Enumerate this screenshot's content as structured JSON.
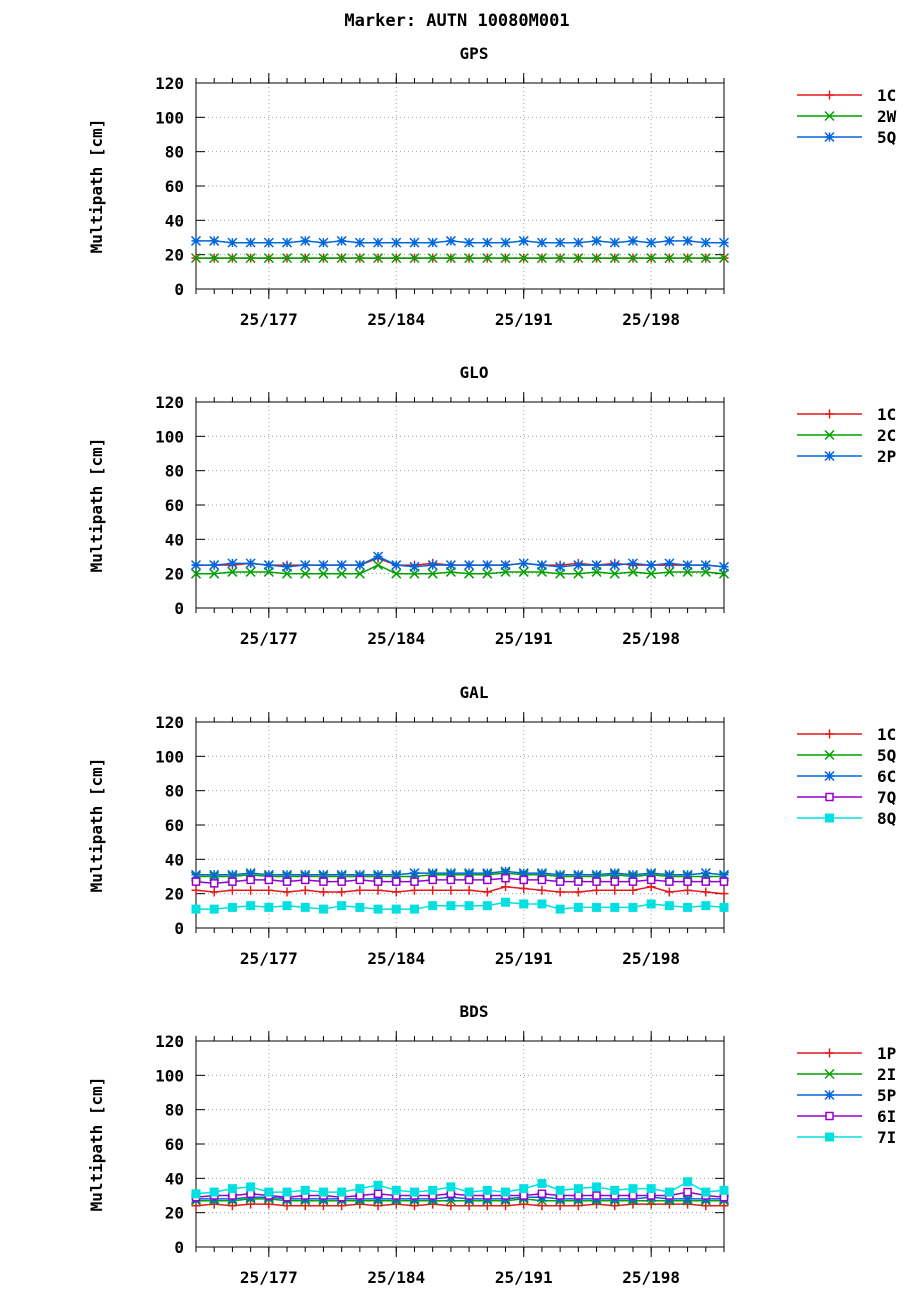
{
  "main_title": "Marker: AUTN 10080M001",
  "chart_data": [
    {
      "type": "line",
      "title": "GPS",
      "ylabel": "Multipath [cm]",
      "xlabel": "",
      "ylim": [
        0,
        120
      ],
      "yticks": [
        0,
        20,
        40,
        60,
        80,
        100,
        120
      ],
      "xlim": [
        2025.173,
        2025.202
      ],
      "xticks": [
        "25/177",
        "25/184",
        "25/191",
        "25/198"
      ],
      "xtick_values": [
        2025.177,
        2025.184,
        2025.191,
        2025.198
      ],
      "grid": true,
      "legend_position": "right",
      "x": [
        2025.173,
        2025.174,
        2025.175,
        2025.176,
        2025.177,
        2025.178,
        2025.179,
        2025.18,
        2025.181,
        2025.182,
        2025.183,
        2025.184,
        2025.185,
        2025.186,
        2025.187,
        2025.188,
        2025.189,
        2025.19,
        2025.191,
        2025.192,
        2025.193,
        2025.194,
        2025.195,
        2025.196,
        2025.197,
        2025.198,
        2025.199,
        2025.2,
        2025.201,
        2025.202
      ],
      "series": [
        {
          "name": "1C",
          "color": "#e41a1c",
          "marker": "plus",
          "values": [
            18,
            18,
            18,
            18,
            18,
            18,
            18,
            18,
            18,
            18,
            18,
            18,
            18,
            18,
            18,
            18,
            18,
            18,
            18,
            18,
            18,
            18,
            18,
            18,
            18,
            18,
            18,
            18,
            18,
            18
          ]
        },
        {
          "name": "2W",
          "color": "#00a000",
          "marker": "cross",
          "values": [
            18,
            18,
            18,
            18,
            18,
            18,
            18,
            18,
            18,
            18,
            18,
            18,
            18,
            18,
            18,
            18,
            18,
            18,
            18,
            18,
            18,
            18,
            18,
            18,
            18,
            18,
            18,
            18,
            18,
            18
          ]
        },
        {
          "name": "5Q",
          "color": "#0066dd",
          "marker": "star",
          "values": [
            28,
            28,
            27,
            27,
            27,
            27,
            28,
            27,
            28,
            27,
            27,
            27,
            27,
            27,
            28,
            27,
            27,
            27,
            28,
            27,
            27,
            27,
            28,
            27,
            28,
            27,
            28,
            28,
            27,
            27
          ]
        }
      ]
    },
    {
      "type": "line",
      "title": "GLO",
      "ylabel": "Multipath [cm]",
      "xlabel": "",
      "ylim": [
        0,
        120
      ],
      "yticks": [
        0,
        20,
        40,
        60,
        80,
        100,
        120
      ],
      "xlim": [
        2025.173,
        2025.202
      ],
      "xticks": [
        "25/177",
        "25/184",
        "25/191",
        "25/198"
      ],
      "xtick_values": [
        2025.177,
        2025.184,
        2025.191,
        2025.198
      ],
      "grid": true,
      "legend_position": "right",
      "x": [
        2025.173,
        2025.174,
        2025.175,
        2025.176,
        2025.177,
        2025.178,
        2025.179,
        2025.18,
        2025.181,
        2025.182,
        2025.183,
        2025.184,
        2025.185,
        2025.186,
        2025.187,
        2025.188,
        2025.189,
        2025.19,
        2025.191,
        2025.192,
        2025.193,
        2025.194,
        2025.195,
        2025.196,
        2025.197,
        2025.198,
        2025.199,
        2025.2,
        2025.201,
        2025.202
      ],
      "series": [
        {
          "name": "1C",
          "color": "#e41a1c",
          "marker": "plus",
          "values": [
            25,
            25,
            25,
            26,
            25,
            25,
            25,
            25,
            25,
            25,
            29,
            25,
            25,
            26,
            25,
            25,
            25,
            25,
            26,
            25,
            25,
            26,
            25,
            26,
            25,
            25,
            25,
            25,
            25,
            24
          ]
        },
        {
          "name": "2C",
          "color": "#00a000",
          "marker": "cross",
          "values": [
            20,
            20,
            21,
            21,
            21,
            20,
            20,
            20,
            20,
            20,
            25,
            20,
            20,
            20,
            21,
            20,
            20,
            21,
            21,
            21,
            20,
            20,
            21,
            20,
            21,
            20,
            21,
            21,
            21,
            20
          ]
        },
        {
          "name": "2P",
          "color": "#0066dd",
          "marker": "star",
          "values": [
            25,
            25,
            26,
            26,
            25,
            24,
            25,
            25,
            25,
            25,
            30,
            25,
            24,
            25,
            25,
            25,
            25,
            25,
            26,
            25,
            24,
            25,
            25,
            25,
            26,
            25,
            26,
            25,
            25,
            24
          ]
        }
      ]
    },
    {
      "type": "line",
      "title": "GAL",
      "ylabel": "Multipath [cm]",
      "xlabel": "",
      "ylim": [
        0,
        120
      ],
      "yticks": [
        0,
        20,
        40,
        60,
        80,
        100,
        120
      ],
      "xlim": [
        2025.173,
        2025.202
      ],
      "xticks": [
        "25/177",
        "25/184",
        "25/191",
        "25/198"
      ],
      "xtick_values": [
        2025.177,
        2025.184,
        2025.191,
        2025.198
      ],
      "grid": true,
      "legend_position": "right",
      "x": [
        2025.173,
        2025.174,
        2025.175,
        2025.176,
        2025.177,
        2025.178,
        2025.179,
        2025.18,
        2025.181,
        2025.182,
        2025.183,
        2025.184,
        2025.185,
        2025.186,
        2025.187,
        2025.188,
        2025.189,
        2025.19,
        2025.191,
        2025.192,
        2025.193,
        2025.194,
        2025.195,
        2025.196,
        2025.197,
        2025.198,
        2025.199,
        2025.2,
        2025.201,
        2025.202
      ],
      "series": [
        {
          "name": "1C",
          "color": "#e41a1c",
          "marker": "plus",
          "values": [
            22,
            21,
            22,
            22,
            22,
            21,
            22,
            21,
            21,
            22,
            22,
            21,
            22,
            22,
            22,
            22,
            21,
            24,
            23,
            22,
            21,
            21,
            22,
            22,
            22,
            24,
            21,
            22,
            21,
            20
          ]
        },
        {
          "name": "5Q",
          "color": "#00a000",
          "marker": "cross",
          "values": [
            30,
            30,
            30,
            31,
            30,
            30,
            30,
            30,
            30,
            30,
            30,
            30,
            30,
            31,
            31,
            31,
            31,
            32,
            31,
            31,
            30,
            30,
            30,
            31,
            30,
            31,
            30,
            30,
            30,
            30
          ]
        },
        {
          "name": "6C",
          "color": "#0066dd",
          "marker": "star",
          "values": [
            31,
            31,
            31,
            32,
            31,
            31,
            31,
            31,
            31,
            31,
            31,
            31,
            32,
            32,
            32,
            32,
            32,
            33,
            32,
            32,
            31,
            31,
            31,
            32,
            31,
            32,
            31,
            31,
            32,
            31
          ]
        },
        {
          "name": "7Q",
          "color": "#9400d3",
          "marker": "square",
          "values": [
            27,
            26,
            27,
            28,
            28,
            27,
            28,
            27,
            27,
            28,
            27,
            27,
            27,
            28,
            28,
            28,
            28,
            29,
            28,
            28,
            27,
            27,
            27,
            27,
            27,
            28,
            27,
            27,
            27,
            27
          ]
        },
        {
          "name": "8Q",
          "color": "#00e0e0",
          "marker": "filled_square",
          "values": [
            11,
            11,
            12,
            13,
            12,
            13,
            12,
            11,
            13,
            12,
            11,
            11,
            11,
            13,
            13,
            13,
            13,
            15,
            14,
            14,
            11,
            12,
            12,
            12,
            12,
            14,
            13,
            12,
            13,
            12
          ]
        }
      ]
    },
    {
      "type": "line",
      "title": "BDS",
      "ylabel": "Multipath [cm]",
      "xlabel": "",
      "ylim": [
        0,
        120
      ],
      "yticks": [
        0,
        20,
        40,
        60,
        80,
        100,
        120
      ],
      "xlim": [
        2025.173,
        2025.202
      ],
      "xticks": [
        "25/177",
        "25/184",
        "25/191",
        "25/198"
      ],
      "xtick_values": [
        2025.177,
        2025.184,
        2025.191,
        2025.198
      ],
      "grid": true,
      "legend_position": "right",
      "x": [
        2025.173,
        2025.174,
        2025.175,
        2025.176,
        2025.177,
        2025.178,
        2025.179,
        2025.18,
        2025.181,
        2025.182,
        2025.183,
        2025.184,
        2025.185,
        2025.186,
        2025.187,
        2025.188,
        2025.189,
        2025.19,
        2025.191,
        2025.192,
        2025.193,
        2025.194,
        2025.195,
        2025.196,
        2025.197,
        2025.198,
        2025.199,
        2025.2,
        2025.201,
        2025.202
      ],
      "series": [
        {
          "name": "1P",
          "color": "#e41a1c",
          "marker": "plus",
          "values": [
            24,
            25,
            24,
            25,
            25,
            24,
            24,
            24,
            24,
            25,
            24,
            25,
            24,
            25,
            24,
            24,
            24,
            24,
            25,
            24,
            24,
            24,
            25,
            24,
            25,
            25,
            25,
            25,
            24,
            24
          ]
        },
        {
          "name": "2I",
          "color": "#00a000",
          "marker": "cross",
          "values": [
            27,
            27,
            27,
            28,
            28,
            27,
            27,
            27,
            27,
            27,
            27,
            27,
            27,
            27,
            27,
            27,
            27,
            27,
            28,
            27,
            27,
            27,
            27,
            27,
            27,
            27,
            27,
            27,
            27,
            27
          ]
        },
        {
          "name": "5P",
          "color": "#0066dd",
          "marker": "star",
          "values": [
            28,
            28,
            28,
            29,
            29,
            28,
            28,
            28,
            28,
            28,
            28,
            28,
            28,
            28,
            29,
            28,
            28,
            28,
            29,
            29,
            28,
            28,
            28,
            28,
            28,
            29,
            28,
            28,
            28,
            28
          ]
        },
        {
          "name": "6I",
          "color": "#9400d3",
          "marker": "square",
          "values": [
            29,
            30,
            30,
            31,
            30,
            29,
            30,
            30,
            29,
            30,
            31,
            30,
            30,
            30,
            31,
            30,
            30,
            30,
            30,
            31,
            30,
            30,
            30,
            30,
            30,
            30,
            30,
            32,
            30,
            29
          ]
        },
        {
          "name": "7I",
          "color": "#00e0e0",
          "marker": "filled_square",
          "values": [
            31,
            32,
            34,
            35,
            32,
            32,
            33,
            32,
            32,
            34,
            36,
            33,
            32,
            33,
            35,
            32,
            33,
            32,
            34,
            37,
            33,
            34,
            35,
            33,
            34,
            34,
            32,
            38,
            32,
            33
          ]
        }
      ]
    }
  ]
}
